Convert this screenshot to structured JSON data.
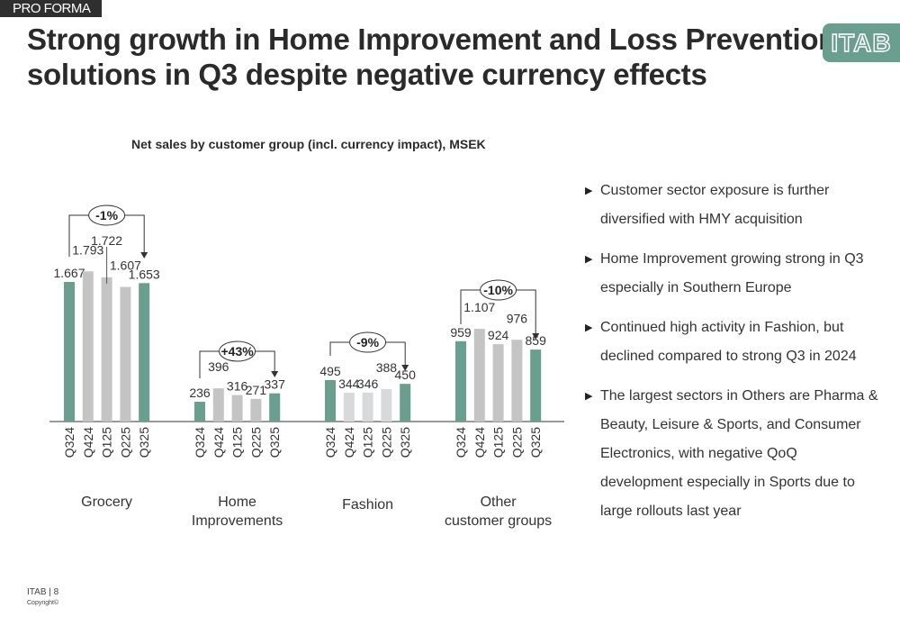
{
  "tag": "PRO FORMA",
  "title_line1": "Strong growth in Home Improvement and Loss Prevention",
  "title_line2": "solutions in Q3 despite negative currency effects",
  "logo": "ITAB",
  "colors": {
    "highlight": "#6a9e8f",
    "gray": "#c4c4c4",
    "light_gray": "#d8d9da",
    "text": "#2b2b2b"
  },
  "chart_data": {
    "type": "bar",
    "title": "Net sales by customer group (incl. currency impact), MSEK",
    "xlabel": "",
    "ylabel": "",
    "ylim": [
      0,
      1900
    ],
    "grid": false,
    "categories": [
      "Q324",
      "Q424",
      "Q125",
      "Q225",
      "Q325"
    ],
    "groups": [
      {
        "name": "Grocery",
        "label_lines": [
          "Grocery"
        ],
        "values": [
          1667,
          1793,
          1722,
          1607,
          1653
        ],
        "value_labels": [
          "1.667",
          "1.793",
          "1.722",
          "1.607",
          "1.653"
        ],
        "change": "-1%",
        "gray_style": "gray"
      },
      {
        "name": "Home Improvements",
        "label_lines": [
          "Home",
          "Improvements"
        ],
        "values": [
          236,
          396,
          316,
          271,
          337
        ],
        "value_labels": [
          "236",
          "396",
          "316",
          "271",
          "337"
        ],
        "change": "+43%",
        "gray_style": "gray"
      },
      {
        "name": "Fashion",
        "label_lines": [
          "Fashion"
        ],
        "values": [
          495,
          344,
          346,
          388,
          450
        ],
        "value_labels": [
          "495",
          "344",
          "346",
          "388",
          "450"
        ],
        "change": "-9%",
        "gray_style": "light_gray"
      },
      {
        "name": "Other customer groups",
        "label_lines": [
          "Other",
          "customer groups"
        ],
        "values": [
          959,
          1107,
          924,
          976,
          859
        ],
        "value_labels": [
          "959",
          "1.107",
          "924",
          "976",
          "859"
        ],
        "change": "-10%",
        "gray_style": "gray"
      }
    ]
  },
  "bullets": [
    "Customer sector exposure is further diversified with HMY acquisition",
    "Home Improvement growing strong in Q3 especially in Southern Europe",
    "Continued high activity in Fashion, but declined compared to strong Q3 in 2024",
    "The largest sectors in Others are Pharma & Beauty, Leisure & Sports, and Consumer Electronics, with negative QoQ development especially in Sports due to large rollouts last year"
  ],
  "bullet_icon": "triangle-right-icon",
  "footer": {
    "page": "ITAB | 8",
    "copyright": "Copyright©"
  }
}
